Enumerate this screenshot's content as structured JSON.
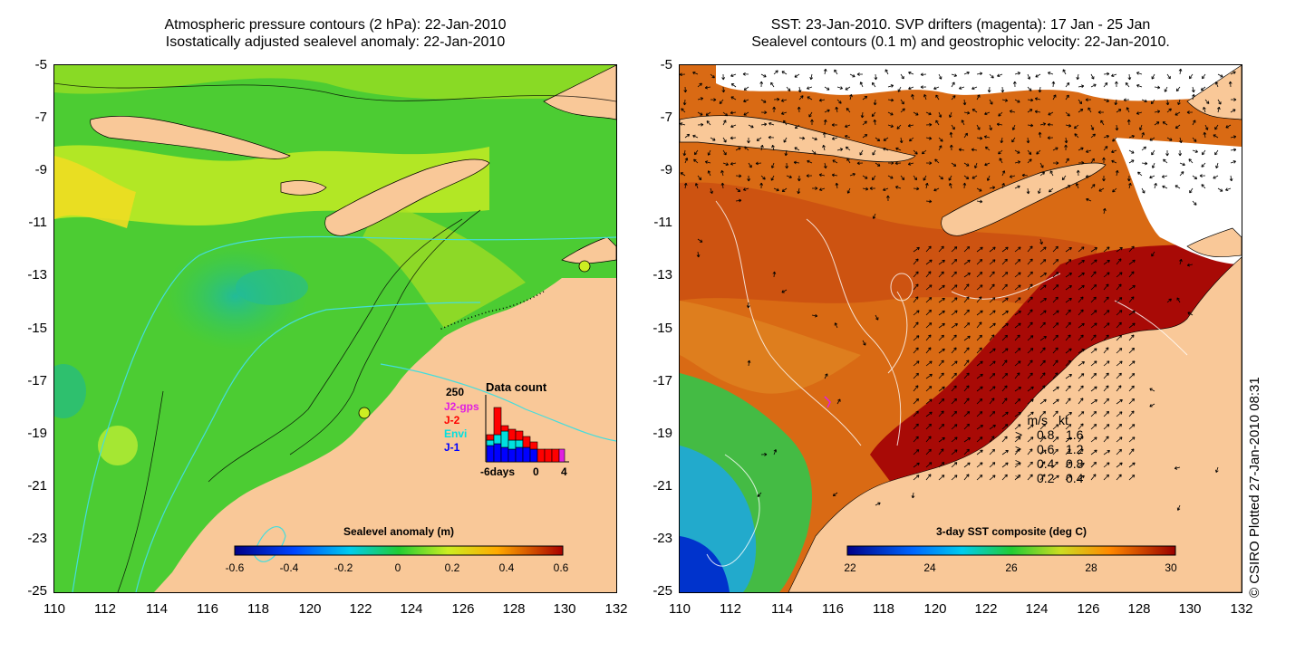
{
  "left_panel": {
    "title_line1": "Atmospheric pressure contours (2 hPa): 22-Jan-2010",
    "title_line2": "Isostatically adjusted sealevel anomaly: 22-Jan-2010",
    "colorbar_title": "Sealevel anomaly (m)",
    "colorbar_ticks": [
      "-0.6",
      "-0.4",
      "-0.2",
      "0",
      "0.2",
      "0.4",
      "0.6"
    ],
    "data_count": {
      "title": "Data count",
      "ymax_label": "250",
      "x_tick_labels": [
        "-6days",
        "0",
        "4"
      ],
      "legend": [
        {
          "label": "J2-gps",
          "color": "#e020e0"
        },
        {
          "label": "J-2",
          "color": "#ff0000"
        },
        {
          "label": "Envi",
          "color": "#00e0e0"
        },
        {
          "label": "J-1",
          "color": "#0000ff"
        }
      ]
    }
  },
  "right_panel": {
    "title_line1": "SST: 23-Jan-2010. SVP drifters (magenta): 17 Jan - 25 Jan",
    "title_line2": "Sealevel contours (0.1 m) and geostrophic velocity: 22-Jan-2010.",
    "colorbar_title": "3-day SST composite (deg C)",
    "colorbar_ticks": [
      "22",
      "24",
      "26",
      "28",
      "30"
    ],
    "velocity_legend": {
      "header_ms": "m/s",
      "header_kt": "kt",
      "rows": [
        {
          "ms": "0.8",
          "kt": "1.6"
        },
        {
          "ms": "0.6",
          "kt": "1.2"
        },
        {
          "ms": "0.4",
          "kt": "0.8"
        },
        {
          "ms": "0.2",
          "kt": "0.4"
        }
      ]
    }
  },
  "axes": {
    "x_ticks": [
      "110",
      "112",
      "114",
      "116",
      "118",
      "120",
      "122",
      "124",
      "126",
      "128",
      "130",
      "132"
    ],
    "y_ticks": [
      "-5",
      "-7",
      "-9",
      "-11",
      "-13",
      "-15",
      "-17",
      "-19",
      "-21",
      "-23",
      "-25"
    ]
  },
  "copyright": "© CSIRO Plotted 27-Jan-2010 08:31",
  "colors": {
    "land": "#f9c898",
    "sea_green": "#44cc33",
    "sst_orange": "#dd6611",
    "sst_red": "#aa0000",
    "contour_cyan": "#44dddd"
  }
}
